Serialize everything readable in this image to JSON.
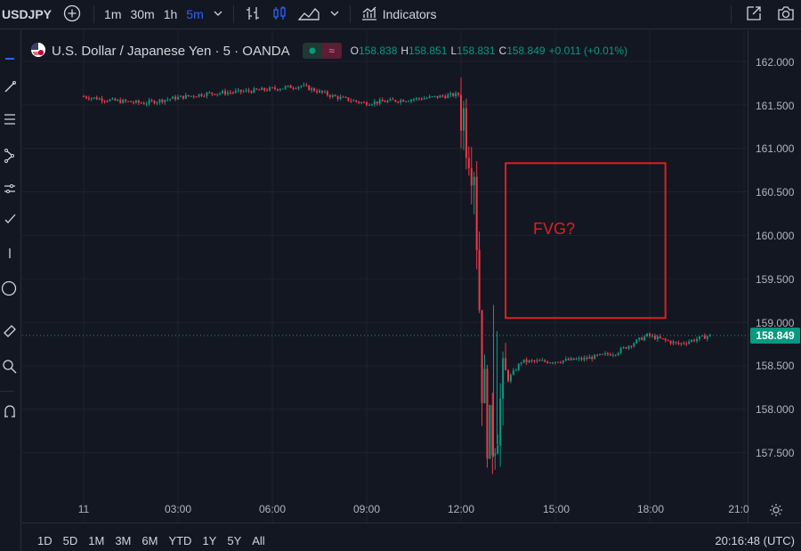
{
  "toolbar": {
    "symbol": "USDJPY",
    "add_symbol_icon": "plus-circle-icon",
    "timeframes": [
      "1m",
      "30m",
      "1h",
      "5m"
    ],
    "active_timeframe": "5m",
    "chevron_icon": "chevron-down-icon",
    "bar_style_icon": "bar-chart-icon",
    "candle_style_icon": "candlestick-icon",
    "area_style_icon": "area-chart-icon",
    "indicators_label": "Indicators",
    "indicators_icon": "indicators-icon",
    "snapshot_icon": "snapshot-icon",
    "camera_icon": "camera-icon"
  },
  "legend": {
    "title": "U.S. Dollar / Japanese Yen · 5 · OANDA",
    "flag_icon": "us-japan-flag-icon",
    "o_label": "O",
    "o_value": "158.838",
    "h_label": "H",
    "h_value": "158.851",
    "l_label": "L",
    "l_value": "158.831",
    "c_label": "C",
    "c_value": "158.849",
    "change": "+0.011 (+0.01%)"
  },
  "price_axis": {
    "labels": [
      "162.000",
      "161.500",
      "161.000",
      "160.500",
      "160.000",
      "159.500",
      "159.000",
      "158.500",
      "158.000",
      "157.500"
    ],
    "current_price": "158.849"
  },
  "time_axis": {
    "labels": [
      "11",
      "03:00",
      "06:00",
      "09:00",
      "12:00",
      "15:00",
      "18:00",
      "21:0"
    ]
  },
  "annotation": {
    "text": "FVG?",
    "color": "#e01e1e"
  },
  "range_buttons": [
    "1D",
    "5D",
    "1M",
    "3M",
    "6M",
    "YTD",
    "1Y",
    "5Y",
    "All"
  ],
  "clock": "20:16:48 (UTC)",
  "colors": {
    "up": "#089981",
    "down": "#f23645",
    "background": "#131722",
    "accent": "#2962ff"
  },
  "chart_data": {
    "type": "candlestick",
    "symbol": "USDJPY",
    "ylim": [
      157.2,
      162.3
    ],
    "x_ticks": [
      "11",
      "03:00",
      "06:00",
      "09:00",
      "12:00",
      "15:00",
      "18:00",
      "21:0"
    ],
    "series": [
      {
        "x": "00:00",
        "close": 161.6
      },
      {
        "x": "01:00",
        "close": 161.55
      },
      {
        "x": "02:00",
        "close": 161.52
      },
      {
        "x": "03:00",
        "close": 161.58
      },
      {
        "x": "04:00",
        "close": 161.63
      },
      {
        "x": "05:00",
        "close": 161.65
      },
      {
        "x": "06:00",
        "close": 161.68
      },
      {
        "x": "07:00",
        "close": 161.72
      },
      {
        "x": "08:00",
        "close": 161.6
      },
      {
        "x": "09:00",
        "close": 161.52
      },
      {
        "x": "10:00",
        "close": 161.55
      },
      {
        "x": "11:00",
        "close": 161.58
      },
      {
        "x": "12:00",
        "close": 161.62
      },
      {
        "x": "12:30",
        "close": 160.9
      },
      {
        "x": "12:45",
        "close": 158.4
      },
      {
        "x": "13:00",
        "close": 157.6
      },
      {
        "x": "13:30",
        "close": 158.3
      },
      {
        "x": "14:00",
        "close": 158.55
      },
      {
        "x": "15:00",
        "close": 158.55
      },
      {
        "x": "16:00",
        "close": 158.58
      },
      {
        "x": "17:00",
        "close": 158.65
      },
      {
        "x": "18:00",
        "close": 158.85
      },
      {
        "x": "19:00",
        "close": 158.75
      },
      {
        "x": "20:00",
        "close": 158.85
      }
    ],
    "current_price": 158.849
  }
}
